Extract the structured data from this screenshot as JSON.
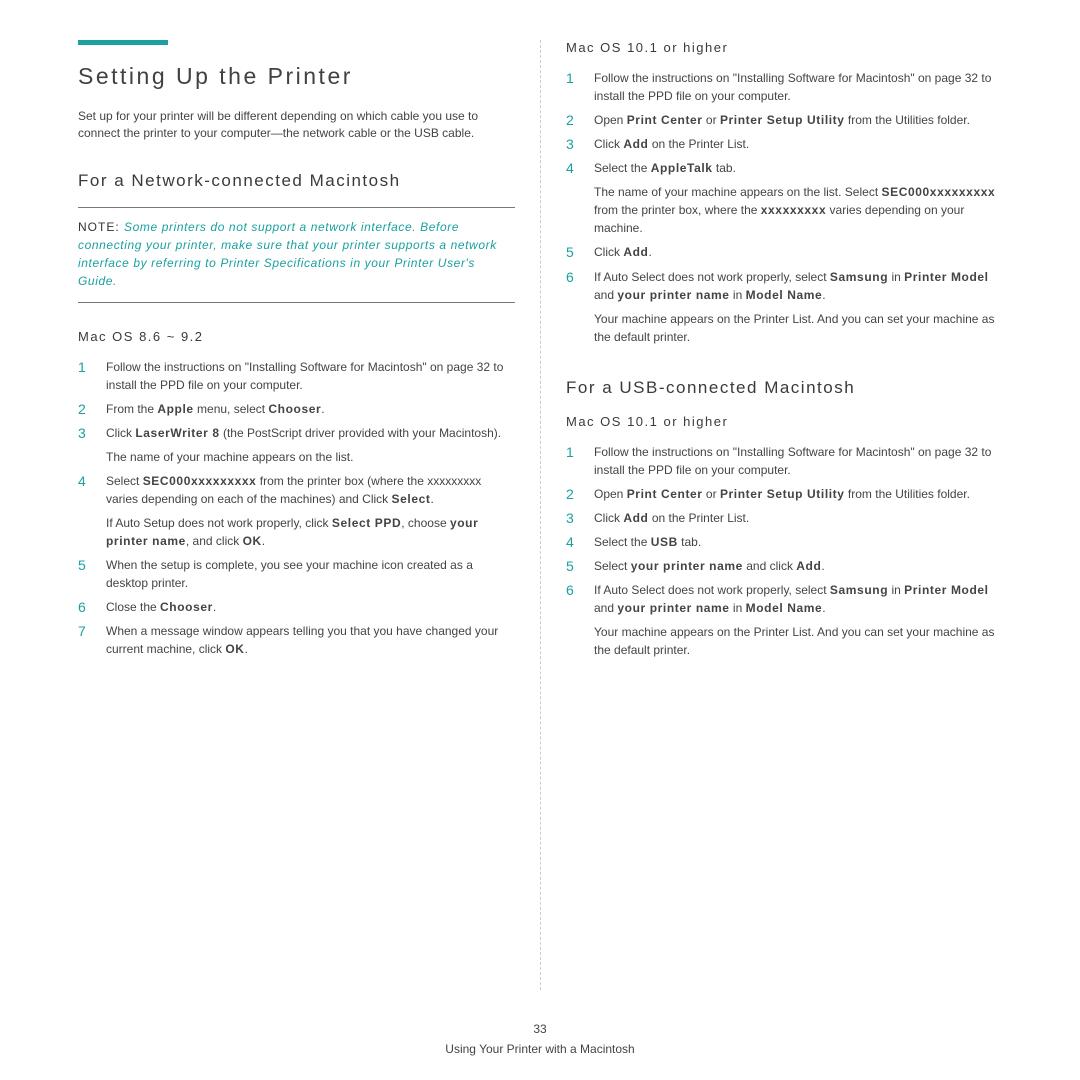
{
  "style": {
    "accent_color": "#1aa0a0",
    "text_color": "#444444",
    "rule_color": "#777777"
  },
  "left": {
    "title": "Setting Up the Printer",
    "intro": "Set up for your printer will be different depending on which cable you use to connect the printer to your computer—the network cable or the USB cable.",
    "section_heading": "For a Network-connected Macintosh",
    "note_label": "NOTE: ",
    "note_body": "Some printers do not support a network interface. Before connecting your printer, make sure that your printer supports a network interface by referring to Printer Specifications in your Printer User's Guide.",
    "os8_heading": "Mac OS 8.6 ~ 9.2",
    "os8_steps": [
      [
        "Follow the instructions on \"Installing Software for Macintosh\" on page 32 to install the PPD file on your computer."
      ],
      [
        "From the <span class='b'>Apple</span> menu, select <span class='b'>Chooser</span>."
      ],
      [
        "Click <span class='b'>LaserWriter 8</span> (the PostScript driver provided with your Macintosh).",
        "The name of your machine appears on the list."
      ],
      [
        "Select <span class='b'>SEC000xxxxxxxxx</span> from the printer box (where the xxxxxxxxx varies depending on each of the machines) and Click <span class='b'>Select</span>.",
        "If Auto Setup does not work properly, click <span class='b'>Select PPD</span>, choose <span class='b'>your printer name</span>, and click <span class='b'>OK</span>."
      ],
      [
        "When the setup is complete, you see your machine icon created as a desktop printer."
      ],
      [
        "Close the <span class='b'>Chooser</span>."
      ],
      [
        "When a message window appears telling you that you have changed your current machine, click <span class='b'>OK</span>."
      ]
    ]
  },
  "right": {
    "os10_heading_a": "Mac OS 10.1 or higher",
    "os10_steps_a": [
      [
        "Follow the instructions on \"Installing Software for Macintosh\" on page 32 to install the PPD file on your computer."
      ],
      [
        "Open <span class='b'>Print Center</span> or <span class='b'>Printer Setup Utility</span> from the Utilities folder."
      ],
      [
        "Click <span class='b'>Add</span> on the Printer List."
      ],
      [
        "Select the <span class='b'>AppleTalk</span> tab.",
        "The name of your machine appears on the list. Select <span class='b'>SEC000xxxxxxxxx</span> from the printer box, where the <span class='b'>xxxxxxxxx</span> varies depending on your machine."
      ],
      [
        "Click <span class='b'>Add</span>."
      ],
      [
        "If Auto Select does not work properly, select <span class='b'>Samsung</span> in <span class='b'>Printer Model</span> and <span class='b'>your printer name</span> in <span class='b'>Model Name</span>.",
        "Your machine appears on the Printer List. And you can set your machine as the default printer."
      ]
    ],
    "usb_heading": "For a USB-connected Macintosh",
    "os10_heading_b": "Mac OS 10.1 or higher",
    "os10_steps_b": [
      [
        "Follow the instructions on \"Installing Software for Macintosh\" on page 32 to install the PPD file on your computer."
      ],
      [
        "Open <span class='b'>Print Center</span> or <span class='b'>Printer Setup Utility</span> from the Utilities folder."
      ],
      [
        "Click <span class='b'>Add</span> on the Printer List."
      ],
      [
        "Select the <span class='b'>USB</span> tab."
      ],
      [
        "Select <span class='b'>your printer name</span> and click <span class='b'>Add</span>."
      ],
      [
        "If Auto Select does not work properly, select <span class='b'>Samsung</span> in <span class='b'>Printer Model</span> and <span class='b'>your printer name</span> in <span class='b'>Model Name</span>.",
        "Your machine appears on the Printer List. And you can set your machine as the default printer."
      ]
    ]
  },
  "footer": {
    "page_number": "33",
    "caption": "Using Your Printer with a Macintosh"
  }
}
